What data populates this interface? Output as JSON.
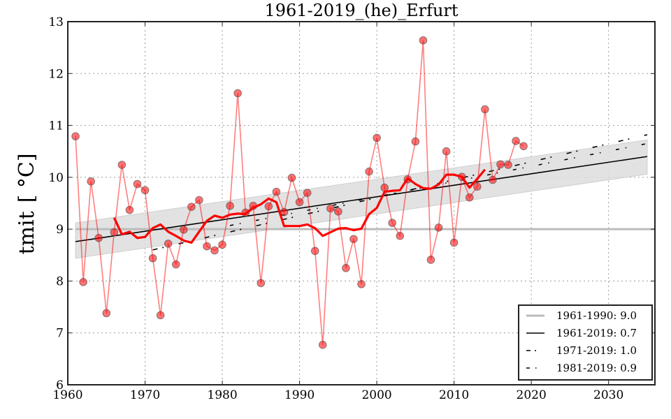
{
  "chart_data": {
    "type": "line",
    "title": "1961-2019_(he)_Erfurt",
    "xlabel": "",
    "ylabel": "tmit [ °C]",
    "ylabel_main": "tmit",
    "ylabel_unit": "[ °C]",
    "xlim": [
      1960,
      2036
    ],
    "ylim": [
      6,
      13
    ],
    "xticks": [
      1960,
      1970,
      1980,
      1990,
      2000,
      2010,
      2020,
      2030
    ],
    "yticks": [
      6,
      7,
      8,
      9,
      10,
      11,
      12,
      13
    ],
    "grid": true,
    "legend_position": "bottom-right",
    "colors": {
      "annual": "#ff0000",
      "moving_average": "#ff0000",
      "baseline": "#bbbbbb",
      "trend": "#000000",
      "band": "#dddddd"
    },
    "series": [
      {
        "name": "annual",
        "x": [
          1961,
          1962,
          1963,
          1964,
          1965,
          1966,
          1967,
          1968,
          1969,
          1970,
          1971,
          1972,
          1973,
          1974,
          1975,
          1976,
          1977,
          1978,
          1979,
          1980,
          1981,
          1982,
          1983,
          1984,
          1985,
          1986,
          1987,
          1988,
          1989,
          1990,
          1991,
          1992,
          1993,
          1994,
          1995,
          1996,
          1997,
          1998,
          1999,
          2000,
          2001,
          2002,
          2003,
          2004,
          2005,
          2006,
          2007,
          2008,
          2009,
          2010,
          2011,
          2012,
          2013,
          2014,
          2015,
          2016,
          2017,
          2018,
          2019
        ],
        "values": [
          10.79,
          7.98,
          9.92,
          8.83,
          7.38,
          8.94,
          10.24,
          9.37,
          9.87,
          9.75,
          8.44,
          7.34,
          8.72,
          8.32,
          8.99,
          9.43,
          9.56,
          8.67,
          8.59,
          8.7,
          9.45,
          11.62,
          9.32,
          9.45,
          7.96,
          9.44,
          9.72,
          9.33,
          9.99,
          9.52,
          9.7,
          8.58,
          6.77,
          9.4,
          9.34,
          8.25,
          8.81,
          7.94,
          10.11,
          10.76,
          9.8,
          9.12,
          8.87,
          9.96,
          10.69,
          12.64,
          8.41,
          9.03,
          10.5,
          8.74,
          10.01,
          9.61,
          9.82,
          11.31,
          9.95,
          10.25,
          10.24,
          10.7,
          10.6
        ]
      },
      {
        "name": "moving_average",
        "x": [
          1966,
          1967,
          1968,
          1969,
          1970,
          1971,
          1972,
          1973,
          1974,
          1975,
          1976,
          1977,
          1978,
          1979,
          1980,
          1981,
          1982,
          1983,
          1984,
          1985,
          1986,
          1987,
          1988,
          1989,
          1990,
          1991,
          1992,
          1993,
          1994,
          1995,
          1996,
          1997,
          1998,
          1999,
          2000,
          2001,
          2002,
          2003,
          2004,
          2005,
          2006,
          2007,
          2008,
          2009,
          2010,
          2011,
          2012,
          2013,
          2014
        ],
        "values": [
          9.22,
          8.9,
          8.95,
          8.83,
          8.85,
          9.02,
          9.09,
          8.95,
          8.87,
          8.78,
          8.74,
          8.95,
          9.16,
          9.26,
          9.22,
          9.28,
          9.3,
          9.29,
          9.41,
          9.48,
          9.59,
          9.52,
          9.06,
          9.06,
          9.06,
          9.09,
          9.02,
          8.87,
          8.94,
          9.01,
          9.02,
          8.98,
          9.01,
          9.29,
          9.41,
          9.72,
          9.74,
          9.75,
          9.98,
          9.87,
          9.79,
          9.78,
          9.86,
          10.05,
          10.05,
          10.01,
          9.8,
          9.97,
          10.15
        ]
      }
    ],
    "trend_lines": [
      {
        "label": "1961-1990: 9.0",
        "style": "baseline",
        "x": [
          1961,
          2036
        ],
        "values": [
          9.0,
          9.0
        ]
      },
      {
        "label": "1961-2019: 0.7",
        "style": "solid",
        "x": [
          1961,
          2035
        ],
        "values": [
          8.76,
          10.4
        ]
      },
      {
        "label": "1971-2019: 1.0",
        "style": "dashed",
        "x": [
          1971,
          2035
        ],
        "values": [
          8.6,
          10.82
        ]
      },
      {
        "label": "1981-2019: 0.9",
        "style": "dashdot",
        "x": [
          1981,
          2035
        ],
        "values": [
          9.07,
          10.65
        ]
      }
    ],
    "confidence_band": {
      "x": [
        1961,
        2035
      ],
      "upper": [
        9.12,
        10.72
      ],
      "lower": [
        8.44,
        10.06
      ]
    }
  }
}
